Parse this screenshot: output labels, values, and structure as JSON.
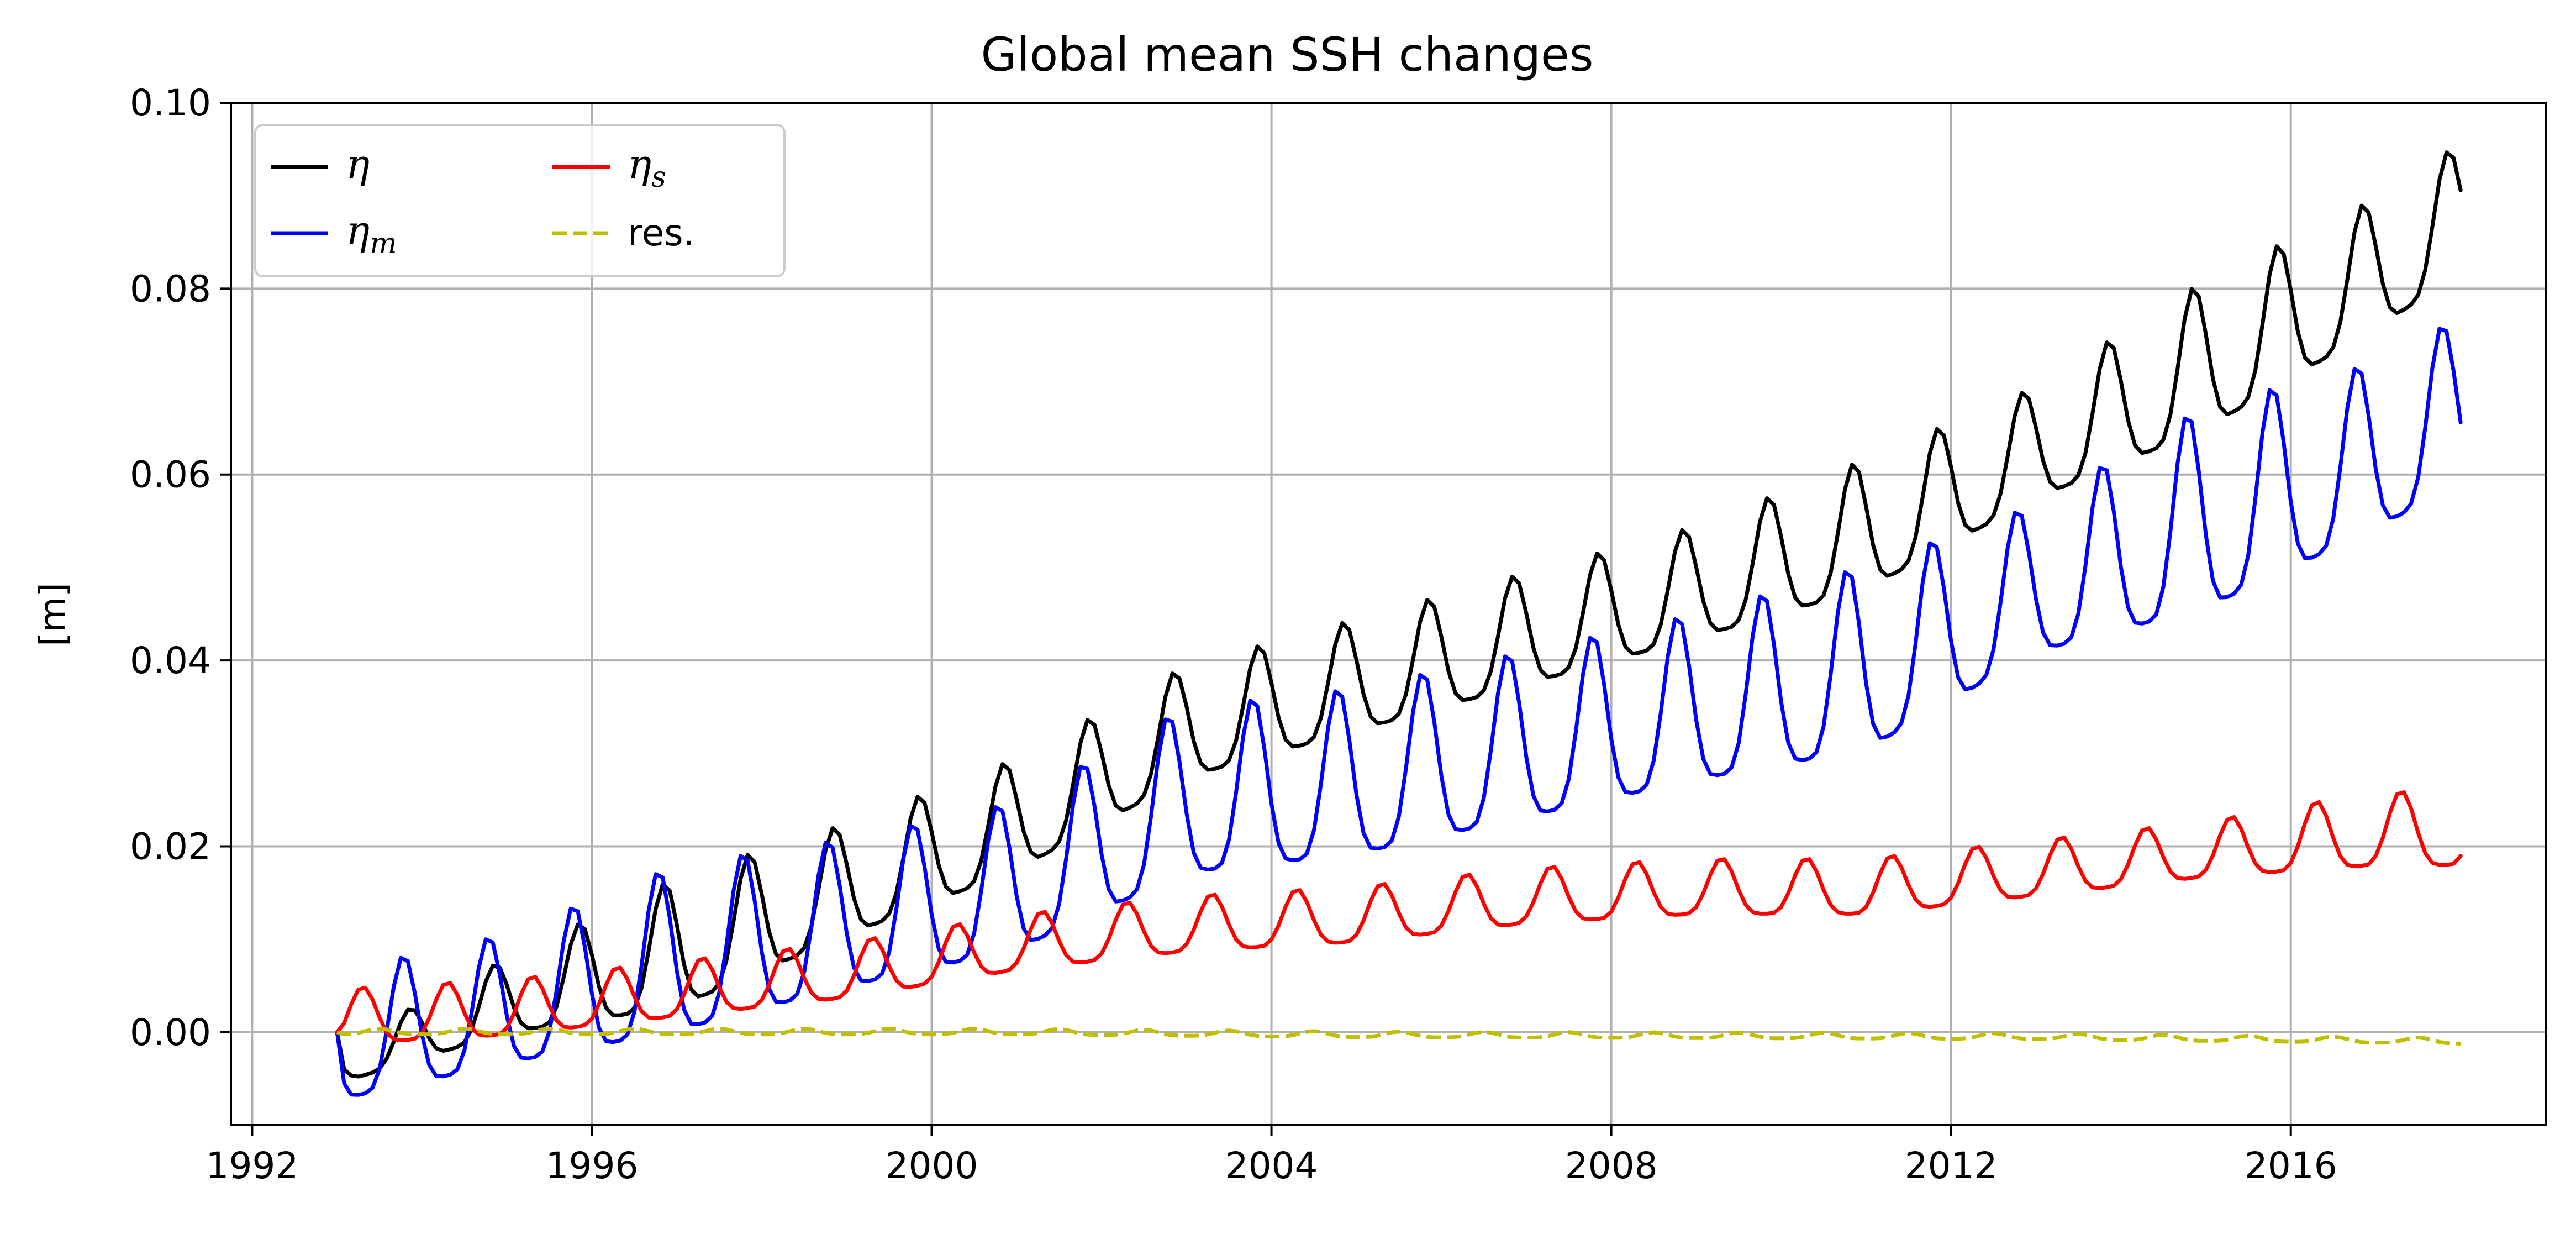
{
  "chart_data": {
    "type": "line",
    "title": "Global mean SSH changes",
    "xlabel": "",
    "ylabel": "[m]",
    "xlim": [
      1991.75,
      2019.0
    ],
    "ylim": [
      -0.01,
      0.1
    ],
    "xticks": [
      1992,
      1996,
      2000,
      2004,
      2008,
      2012,
      2016
    ],
    "xtick_labels": [
      "1992",
      "1996",
      "2000",
      "2004",
      "2008",
      "2012",
      "2016"
    ],
    "yticks": [
      0.0,
      0.02,
      0.04,
      0.06,
      0.08,
      0.1
    ],
    "ytick_labels": [
      "0.00",
      "0.02",
      "0.04",
      "0.06",
      "0.08",
      "0.10"
    ],
    "grid": true,
    "legend_position": "top-left",
    "legend_columns": 2,
    "x_start": 1993.0,
    "x_end": 2018.0,
    "series": [
      {
        "name": "η",
        "sub": "",
        "color": "#000000",
        "dash": "solid",
        "trend": [
          [
            1993.0,
            -0.004
          ],
          [
            1995.0,
            0.003
          ],
          [
            1997.0,
            0.008
          ],
          [
            1999.0,
            0.015
          ],
          [
            2001.0,
            0.022
          ],
          [
            2003.0,
            0.032
          ],
          [
            2005.0,
            0.037
          ],
          [
            2007.0,
            0.042
          ],
          [
            2009.0,
            0.047
          ],
          [
            2011.0,
            0.053
          ],
          [
            2013.0,
            0.062
          ],
          [
            2015.0,
            0.071
          ],
          [
            2017.0,
            0.081
          ],
          [
            2018.0,
            0.087
          ]
        ],
        "amp": [
          [
            1993.0,
            0.002
          ],
          [
            1995.0,
            0.004
          ],
          [
            1997.0,
            0.007
          ],
          [
            1999.0,
            0.006
          ],
          [
            2001.0,
            0.006
          ],
          [
            2003.0,
            0.006
          ],
          [
            2005.0,
            0.006
          ],
          [
            2007.0,
            0.006
          ],
          [
            2009.0,
            0.006
          ],
          [
            2011.0,
            0.007
          ],
          [
            2013.0,
            0.006
          ],
          [
            2015.0,
            0.008
          ],
          [
            2017.0,
            0.007
          ],
          [
            2018.0,
            0.007
          ]
        ],
        "phase_peak": 0.85,
        "end_value": 0.092
      },
      {
        "name": "η",
        "sub": "m",
        "color": "#0000ff",
        "dash": "solid",
        "trend": [
          [
            1993.0,
            -0.002
          ],
          [
            1995.0,
            0.002
          ],
          [
            1997.0,
            0.007
          ],
          [
            1999.0,
            0.011
          ],
          [
            2001.0,
            0.015
          ],
          [
            2003.0,
            0.024
          ],
          [
            2005.0,
            0.026
          ],
          [
            2007.0,
            0.03
          ],
          [
            2009.0,
            0.034
          ],
          [
            2011.0,
            0.038
          ],
          [
            2013.0,
            0.047
          ],
          [
            2015.0,
            0.054
          ],
          [
            2017.0,
            0.061
          ],
          [
            2018.0,
            0.066
          ]
        ],
        "amp": [
          [
            1993.0,
            0.007
          ],
          [
            1995.0,
            0.007
          ],
          [
            1997.0,
            0.009
          ],
          [
            1999.0,
            0.008
          ],
          [
            2001.0,
            0.008
          ],
          [
            2003.0,
            0.009
          ],
          [
            2005.0,
            0.009
          ],
          [
            2007.0,
            0.009
          ],
          [
            2009.0,
            0.009
          ],
          [
            2011.0,
            0.01
          ],
          [
            2013.0,
            0.008
          ],
          [
            2015.0,
            0.011
          ],
          [
            2017.0,
            0.009
          ],
          [
            2018.0,
            0.009
          ]
        ],
        "phase_peak": 0.78,
        "end_value": 0.073
      },
      {
        "name": "η",
        "sub": "s",
        "color": "#ff0000",
        "dash": "solid",
        "trend": [
          [
            1993.0,
            0.001
          ],
          [
            1995.0,
            0.002
          ],
          [
            1997.0,
            0.004
          ],
          [
            1999.0,
            0.006
          ],
          [
            2001.0,
            0.009
          ],
          [
            2003.0,
            0.011
          ],
          [
            2005.0,
            0.012
          ],
          [
            2007.0,
            0.014
          ],
          [
            2009.0,
            0.015
          ],
          [
            2011.0,
            0.015
          ],
          [
            2013.0,
            0.017
          ],
          [
            2015.0,
            0.019
          ],
          [
            2017.0,
            0.021
          ],
          [
            2018.0,
            0.021
          ]
        ],
        "amp": [
          [
            1993.0,
            0.003
          ],
          [
            1995.0,
            0.003
          ],
          [
            1997.0,
            0.003
          ],
          [
            1999.0,
            0.003
          ],
          [
            2001.0,
            0.003
          ],
          [
            2003.0,
            0.003
          ],
          [
            2005.0,
            0.003
          ],
          [
            2007.0,
            0.003
          ],
          [
            2009.0,
            0.003
          ],
          [
            2011.0,
            0.003
          ],
          [
            2013.0,
            0.003
          ],
          [
            2015.0,
            0.003
          ],
          [
            2017.0,
            0.004
          ],
          [
            2018.0,
            0.004
          ]
        ],
        "phase_peak": 0.3,
        "end_value": 0.02
      },
      {
        "name": "res.",
        "sub": "",
        "color": "#bfbf00",
        "dash": "dashed",
        "trend": [
          [
            1993.0,
            0.0
          ],
          [
            1997.0,
            0.0
          ],
          [
            2001.0,
            0.0
          ],
          [
            2005.0,
            -0.0003
          ],
          [
            2009.0,
            -0.0004
          ],
          [
            2013.0,
            -0.0005
          ],
          [
            2016.0,
            -0.0008
          ],
          [
            2018.0,
            -0.001
          ]
        ],
        "amp": [
          [
            1993.0,
            0.0003
          ],
          [
            2018.0,
            0.0003
          ]
        ],
        "phase_peak": 0.5,
        "end_value": -0.001
      }
    ]
  }
}
